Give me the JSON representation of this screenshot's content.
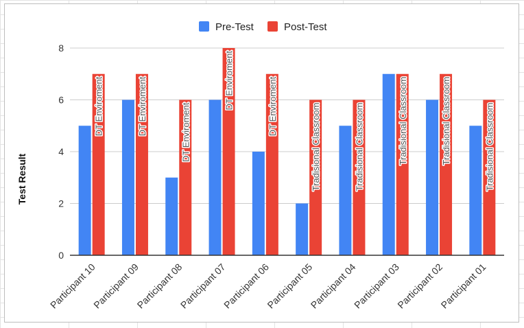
{
  "chart_data": {
    "type": "bar",
    "title": "",
    "xlabel": "",
    "ylabel": "Test Result",
    "ylim": [
      0,
      8
    ],
    "yticks": [
      0,
      2,
      4,
      6,
      8
    ],
    "grid": true,
    "legend_position": "top",
    "categories": [
      "Participant 10",
      "Participant 09",
      "Participant 08",
      "Participant 07",
      "Participant 06",
      "Participant 05",
      "Participant 04",
      "Participant 03",
      "Participant 02",
      "Participant 01"
    ],
    "series": [
      {
        "name": "Pre-Test",
        "color": "#4285f4",
        "values": [
          5,
          6,
          3,
          6,
          4,
          2,
          5,
          7,
          6,
          5
        ]
      },
      {
        "name": "Post-Test",
        "color": "#ea4335",
        "values": [
          7,
          7,
          6,
          8,
          7,
          6,
          6,
          7,
          7,
          6
        ],
        "labels": [
          "DT Enviroment",
          "DT Enviroment",
          "DT Enviroment",
          "DT Enviroment",
          "DT Enviroment",
          "Tradisional Classroom",
          "Tradisional Classroom",
          "Tradisional Classroom",
          "Tradisional Classroom",
          "Tradisional Classroom"
        ]
      }
    ]
  }
}
